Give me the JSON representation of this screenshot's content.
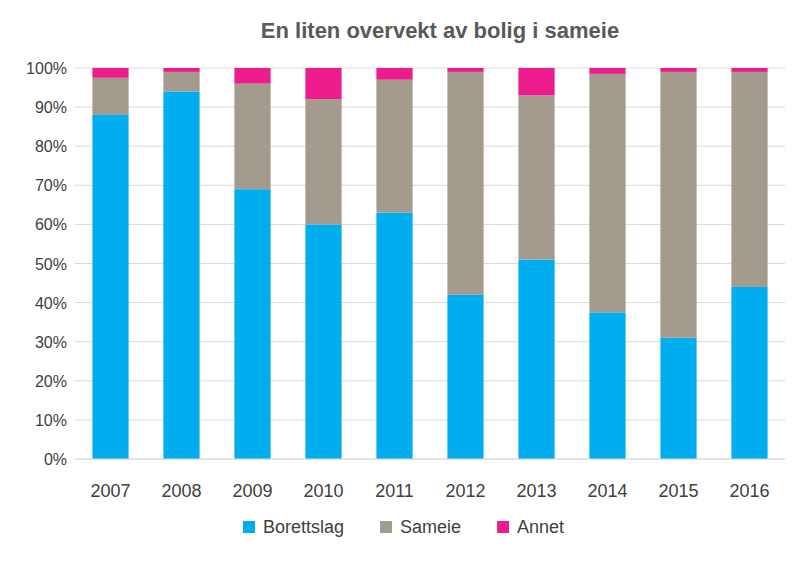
{
  "chart_data": {
    "type": "bar",
    "title": "En liten overvekt av bolig i sameie",
    "categories": [
      "2007",
      "2008",
      "2009",
      "2010",
      "2011",
      "2012",
      "2013",
      "2014",
      "2015",
      "2016"
    ],
    "series": [
      {
        "name": "Borettslag",
        "color": "#00aeef",
        "values": [
          88,
          94,
          69,
          60,
          63,
          42,
          51,
          37.5,
          31,
          44
        ]
      },
      {
        "name": "Sameie",
        "color": "#a29b8e",
        "values": [
          9.5,
          5,
          27,
          32,
          34,
          57,
          42,
          61,
          68,
          55
        ]
      },
      {
        "name": "Annet",
        "color": "#ec1c8c",
        "values": [
          2.5,
          1,
          4,
          8,
          3,
          1,
          7,
          1.5,
          1,
          1
        ]
      }
    ],
    "ylim": [
      0,
      100
    ],
    "yticks": [
      {
        "value": 0,
        "label": "0%"
      },
      {
        "value": 10,
        "label": "10%"
      },
      {
        "value": 20,
        "label": "20%"
      },
      {
        "value": 30,
        "label": "30%"
      },
      {
        "value": 40,
        "label": "40%"
      },
      {
        "value": 50,
        "label": "50%"
      },
      {
        "value": 60,
        "label": "60%"
      },
      {
        "value": 70,
        "label": "70%"
      },
      {
        "value": 80,
        "label": "80%"
      },
      {
        "value": 90,
        "label": "90%"
      },
      {
        "value": 100,
        "label": "100%"
      }
    ],
    "grid": true,
    "stacked": true,
    "legend": "bottom"
  }
}
